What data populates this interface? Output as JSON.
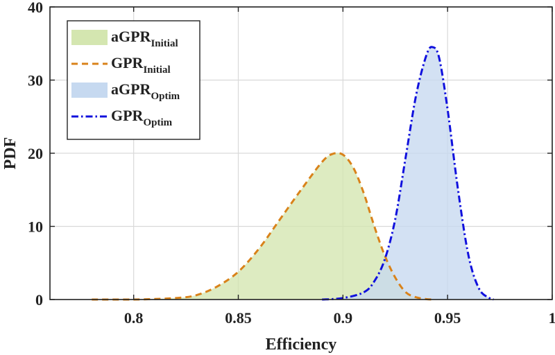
{
  "chart_data": {
    "type": "area",
    "title": "",
    "xlabel": "Efficiency",
    "ylabel": "PDF",
    "xlim": [
      0.76,
      1.0
    ],
    "ylim": [
      0,
      40
    ],
    "xticks": [
      0.8,
      0.85,
      0.9,
      0.95,
      1
    ],
    "xtick_labels": [
      "0.8",
      "0.85",
      "0.9",
      "0.95",
      "1"
    ],
    "yticks": [
      0,
      10,
      20,
      30,
      40
    ],
    "ytick_labels": [
      "0",
      "10",
      "20",
      "30",
      "40"
    ],
    "grid": true,
    "legend_position": "top-left",
    "series": [
      {
        "name": "aGPR_Initial",
        "legend_base": "aGPR",
        "legend_sub": "Initial",
        "style": "filled",
        "color": "#d4e6b0",
        "x": [
          0.78,
          0.8,
          0.82,
          0.83,
          0.84,
          0.85,
          0.86,
          0.87,
          0.88,
          0.89,
          0.895,
          0.9,
          0.905,
          0.91,
          0.915,
          0.92,
          0.925,
          0.93,
          0.935,
          0.94,
          0.943
        ],
        "y": [
          0,
          0,
          0.2,
          0.6,
          1.8,
          3.8,
          7.0,
          11.0,
          15.0,
          18.8,
          19.9,
          19.8,
          18.0,
          14.5,
          10.0,
          6.0,
          3.0,
          1.0,
          0.3,
          0.05,
          0
        ]
      },
      {
        "name": "GPR_Initial",
        "legend_base": "GPR",
        "legend_sub": "Initial",
        "style": "dashed",
        "color": "#d9821a",
        "x": [
          0.78,
          0.8,
          0.82,
          0.83,
          0.84,
          0.85,
          0.86,
          0.87,
          0.88,
          0.89,
          0.895,
          0.9,
          0.905,
          0.91,
          0.915,
          0.92,
          0.925,
          0.93,
          0.935,
          0.94,
          0.943
        ],
        "y": [
          0,
          0,
          0.2,
          0.6,
          1.8,
          3.8,
          7.0,
          11.0,
          15.0,
          18.8,
          19.9,
          19.8,
          18.0,
          14.5,
          10.0,
          6.0,
          3.0,
          1.0,
          0.3,
          0.05,
          0
        ]
      },
      {
        "name": "aGPR_Optim",
        "legend_base": "aGPR",
        "legend_sub": "Optim",
        "style": "filled",
        "color": "#c6d9f0",
        "x": [
          0.89,
          0.9,
          0.91,
          0.915,
          0.92,
          0.925,
          0.93,
          0.935,
          0.94,
          0.943,
          0.946,
          0.95,
          0.955,
          0.96,
          0.965,
          0.97,
          0.972
        ],
        "y": [
          0,
          0.2,
          1.0,
          2.5,
          5.5,
          11.0,
          19.5,
          28.0,
          33.5,
          34.5,
          33.0,
          26.0,
          15.0,
          6.0,
          1.5,
          0.2,
          0
        ]
      },
      {
        "name": "GPR_Optim",
        "legend_base": "GPR",
        "legend_sub": "Optim",
        "style": "dashdot",
        "color": "#1010dd",
        "x": [
          0.89,
          0.9,
          0.91,
          0.915,
          0.92,
          0.925,
          0.93,
          0.935,
          0.94,
          0.943,
          0.946,
          0.95,
          0.955,
          0.96,
          0.965,
          0.97,
          0.972
        ],
        "y": [
          0,
          0.2,
          1.0,
          2.5,
          5.5,
          11.0,
          19.5,
          28.0,
          33.5,
          34.5,
          33.0,
          26.0,
          15.0,
          6.0,
          1.5,
          0.2,
          0
        ]
      }
    ]
  },
  "colors": {
    "axis": "#222222",
    "grid": "#d9d9d9",
    "background": "#ffffff"
  }
}
